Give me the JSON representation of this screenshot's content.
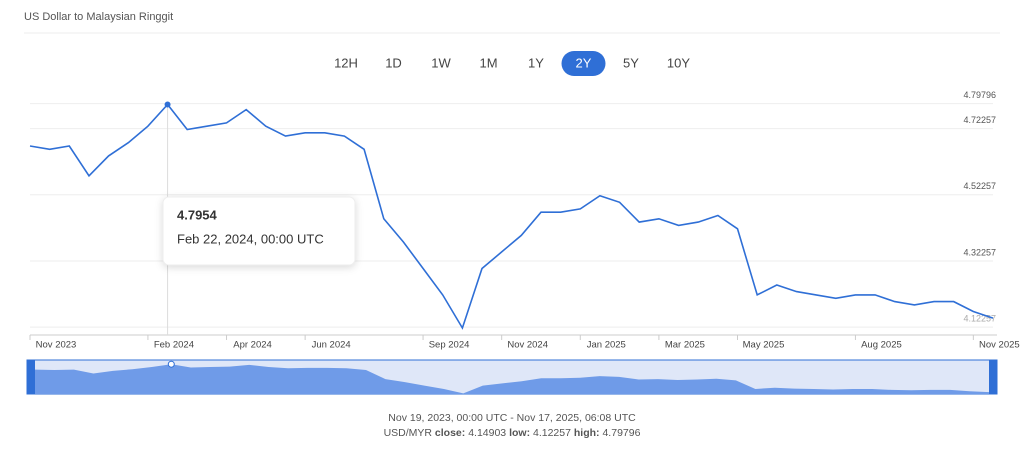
{
  "header": {
    "title": "US Dollar to Malaysian Ringgit"
  },
  "ranges": [
    {
      "label": "12H",
      "selected": false
    },
    {
      "label": "1D",
      "selected": false
    },
    {
      "label": "1W",
      "selected": false
    },
    {
      "label": "1M",
      "selected": false
    },
    {
      "label": "1Y",
      "selected": false
    },
    {
      "label": "2Y",
      "selected": true
    },
    {
      "label": "5Y",
      "selected": false
    },
    {
      "label": "10Y",
      "selected": false
    }
  ],
  "chart_data": {
    "type": "line",
    "categories": [
      "Nov 2023",
      null,
      null,
      null,
      null,
      null,
      "Feb 2024",
      null,
      null,
      null,
      "Apr 2024",
      null,
      null,
      null,
      "Jun 2024",
      null,
      null,
      null,
      null,
      null,
      "Sep 2024",
      null,
      null,
      null,
      "Nov 2024",
      null,
      null,
      null,
      "Jan 2025",
      null,
      null,
      null,
      "Mar 2025",
      null,
      null,
      null,
      "May 2025",
      null,
      null,
      null,
      null,
      null,
      "Aug 2025",
      null,
      null,
      null,
      null,
      null,
      "Nov 2025",
      null
    ],
    "series": [
      {
        "name": "USD/MYR",
        "color": "#2f6fd6",
        "values": [
          4.67,
          4.66,
          4.67,
          4.58,
          4.64,
          4.68,
          4.73,
          4.7954,
          4.72,
          4.73,
          4.74,
          4.78,
          4.73,
          4.7,
          4.71,
          4.71,
          4.7,
          4.66,
          4.45,
          4.38,
          4.3,
          4.22,
          4.12,
          4.3,
          4.35,
          4.4,
          4.47,
          4.47,
          4.48,
          4.52,
          4.5,
          4.44,
          4.45,
          4.43,
          4.44,
          4.46,
          4.42,
          4.22,
          4.25,
          4.23,
          4.22,
          4.21,
          4.22,
          4.22,
          4.2,
          4.19,
          4.2,
          4.2,
          4.17,
          4.15
        ]
      }
    ],
    "ylim": [
      4.105,
      4.8
    ],
    "yticks": [
      4.12257,
      4.32257,
      4.52257,
      4.72257,
      4.79796
    ],
    "grid": true
  },
  "tooltip": {
    "date": "Feb 22, 2024, 00:00 UTC"
  },
  "footer": {
    "range": "Nov 19, 2023, 00:00 UTC - Nov 17, 2025, 06:08 UTC",
    "pair": "USD/MYR",
    "stats": [
      {
        "label": "close:",
        "value": "4.14903"
      },
      {
        "label": "low:",
        "value": "4.12257"
      },
      {
        "label": "high:",
        "value": "4.79796"
      }
    ]
  }
}
